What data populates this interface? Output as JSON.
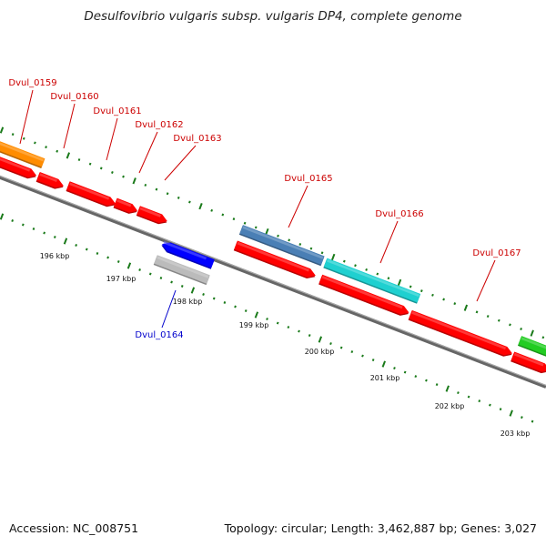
{
  "header": {
    "title": "Desulfovibrio vulgaris subsp. vulgaris DP4, complete genome"
  },
  "footer": {
    "accession": "Accession: NC_008751",
    "summary": "Topology: circular; Length: 3,462,887 bp; Genes: 3,027"
  },
  "scale_labels": [
    "196 kbp",
    "197 kbp",
    "198 kbp",
    "199 kbp",
    "200 kbp",
    "201 kbp",
    "202 kbp",
    "203 kbp"
  ],
  "gene_labels": [
    {
      "text": "Dvul_0159",
      "strand": "forward"
    },
    {
      "text": "Dvul_0160",
      "strand": "forward"
    },
    {
      "text": "Dvul_0161",
      "strand": "forward"
    },
    {
      "text": "Dvul_0162",
      "strand": "forward"
    },
    {
      "text": "Dvul_0163",
      "strand": "forward"
    },
    {
      "text": "Dvul_0164",
      "strand": "reverse"
    },
    {
      "text": "Dvul_0165",
      "strand": "forward"
    },
    {
      "text": "Dvul_0166",
      "strand": "forward"
    },
    {
      "text": "Dvul_0167",
      "strand": "forward"
    }
  ],
  "colors": {
    "forward_label": "#cc0000",
    "reverse_label": "#0000cc",
    "cds": "#ff0000",
    "gc_ticks": "#1a7a1a",
    "backbone": "#777777",
    "feature_orange": "#ff8c00",
    "feature_steelblue": "#4a7fb5",
    "feature_cyan": "#1fd0d0",
    "feature_green": "#22cc22",
    "feature_reverse_blue": "#0000ff",
    "feature_gray": "#bbbbbb"
  }
}
